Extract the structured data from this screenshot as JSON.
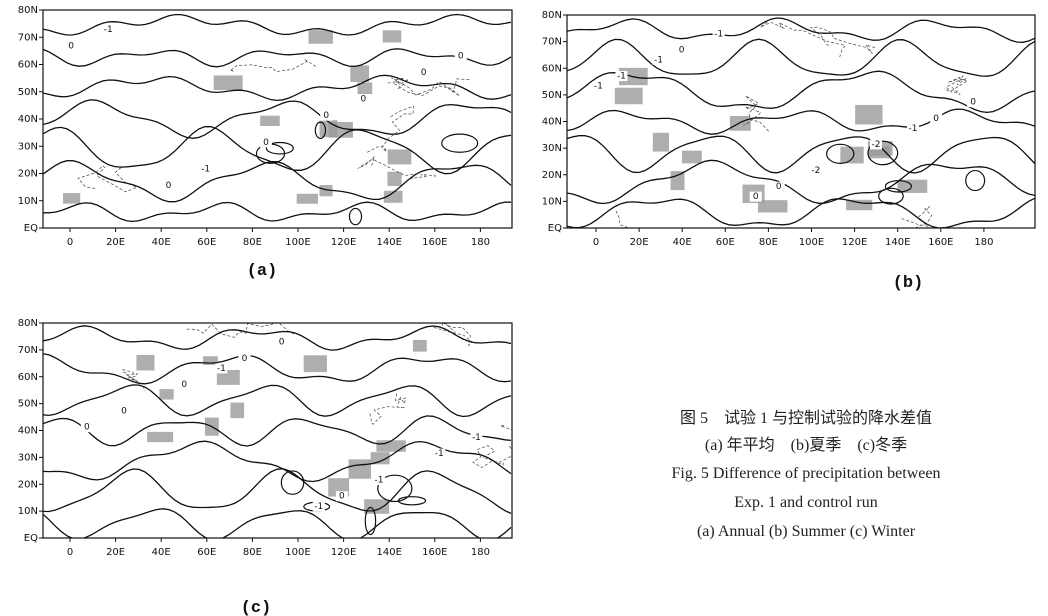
{
  "panels": [
    {
      "label": "(a)",
      "yticks": [
        "80N",
        "70N",
        "60N",
        "50N",
        "40N",
        "30N",
        "20N",
        "10N",
        "EQ"
      ],
      "xticks": [
        "0",
        "20E",
        "40E",
        "60E",
        "80E",
        "100E",
        "120E",
        "140E",
        "160E",
        "180"
      ],
      "contour_labels": [
        "0",
        "0",
        "0",
        "0",
        "0",
        "-1",
        "0",
        "-1",
        "0"
      ]
    },
    {
      "label": "(b)",
      "yticks": [
        "80N",
        "70N",
        "60N",
        "50N",
        "40N",
        "30N",
        "20N",
        "10N",
        "EQ"
      ],
      "xticks": [
        "0",
        "20E",
        "40E",
        "60E",
        "80E",
        "100E",
        "120E",
        "140E",
        "160E",
        "180"
      ],
      "contour_labels": [
        "0",
        "0",
        "0",
        "-1",
        "-2",
        "-1",
        "0",
        "-2",
        "-1",
        "-1",
        "0",
        "-1"
      ]
    },
    {
      "label": "(c)",
      "yticks": [
        "80N",
        "70N",
        "60N",
        "50N",
        "40N",
        "30N",
        "20N",
        "10N",
        "EQ"
      ],
      "xticks": [
        "0",
        "20E",
        "40E",
        "60E",
        "80E",
        "100E",
        "120E",
        "140E",
        "160E",
        "180"
      ],
      "contour_labels": [
        "0",
        "0",
        "0",
        "0",
        "-1",
        "0",
        "0",
        "-1",
        "-1",
        "-1",
        "-1"
      ]
    }
  ],
  "caption": {
    "lines": [
      "图 5　试验 1 与控制试验的降水差值",
      "(a) 年平均　(b)夏季　(c)冬季",
      "Fig. 5 Difference of precipitation between",
      "Exp. 1 and control run",
      "(a) Annual (b) Summer (c) Winter"
    ]
  }
}
